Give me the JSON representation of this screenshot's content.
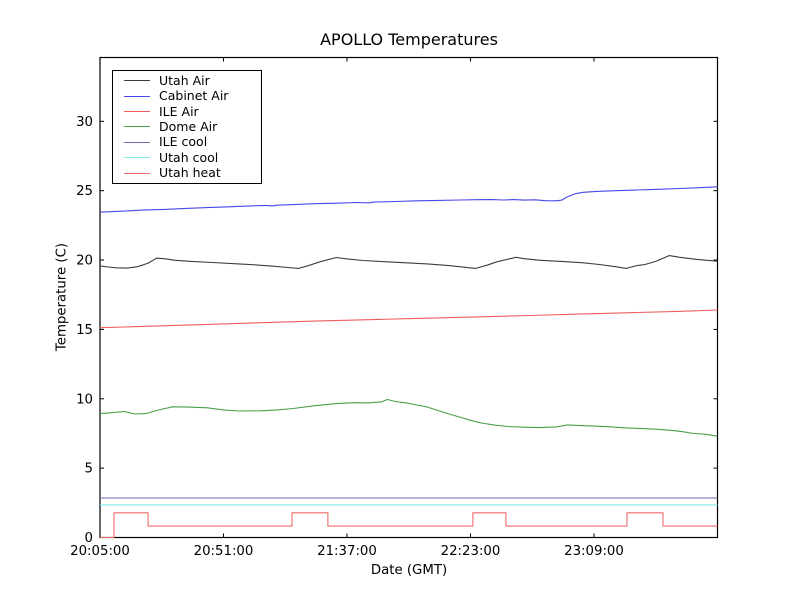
{
  "title": "APOLLO Temperatures",
  "chart_data": {
    "type": "line",
    "title": "APOLLO Temperatures",
    "xlabel": "Date (GMT)",
    "ylabel": "Temperature (C)",
    "x_unit": "minutes after 20:05:00 GMT",
    "xlim": [
      0,
      230
    ],
    "ylim": [
      0,
      34.6
    ],
    "y_ticks": [
      0,
      5,
      10,
      15,
      20,
      25,
      30
    ],
    "x_ticks": [
      {
        "minutes": 0,
        "label": "20:05:00"
      },
      {
        "minutes": 46,
        "label": "20:51:00"
      },
      {
        "minutes": 92,
        "label": "21:37:00"
      },
      {
        "minutes": 138,
        "label": "22:23:00"
      },
      {
        "minutes": 184,
        "label": "23:09:00"
      }
    ],
    "grid": false,
    "legend_position": "upper left",
    "frame_color": "#000000",
    "series": [
      {
        "name": "Utah Air",
        "color": "#3d3d3d",
        "points": [
          [
            0,
            19.58
          ],
          [
            3,
            19.5
          ],
          [
            6,
            19.44
          ],
          [
            10,
            19.42
          ],
          [
            14,
            19.52
          ],
          [
            18,
            19.78
          ],
          [
            21,
            20.13
          ],
          [
            24,
            20.1
          ],
          [
            28,
            19.98
          ],
          [
            34,
            19.9
          ],
          [
            42,
            19.82
          ],
          [
            50,
            19.74
          ],
          [
            58,
            19.65
          ],
          [
            64,
            19.56
          ],
          [
            70,
            19.46
          ],
          [
            74,
            19.4
          ],
          [
            78,
            19.62
          ],
          [
            82,
            19.88
          ],
          [
            88,
            20.18
          ],
          [
            92,
            20.08
          ],
          [
            98,
            19.97
          ],
          [
            106,
            19.88
          ],
          [
            114,
            19.8
          ],
          [
            122,
            19.72
          ],
          [
            130,
            19.6
          ],
          [
            136,
            19.48
          ],
          [
            140,
            19.4
          ],
          [
            144,
            19.62
          ],
          [
            148,
            19.88
          ],
          [
            155,
            20.2
          ],
          [
            158,
            20.1
          ],
          [
            164,
            19.98
          ],
          [
            172,
            19.9
          ],
          [
            180,
            19.8
          ],
          [
            186,
            19.68
          ],
          [
            192,
            19.52
          ],
          [
            196,
            19.4
          ],
          [
            200,
            19.6
          ],
          [
            203,
            19.68
          ],
          [
            207,
            19.9
          ],
          [
            212,
            20.32
          ],
          [
            216,
            20.2
          ],
          [
            222,
            20.05
          ],
          [
            226,
            19.98
          ],
          [
            230,
            19.92
          ]
        ]
      },
      {
        "name": "Cabinet Air",
        "color": "#4747e8",
        "points": [
          [
            0,
            23.45
          ],
          [
            8,
            23.52
          ],
          [
            16,
            23.6
          ],
          [
            24,
            23.65
          ],
          [
            32,
            23.72
          ],
          [
            40,
            23.78
          ],
          [
            48,
            23.84
          ],
          [
            56,
            23.9
          ],
          [
            62,
            23.94
          ],
          [
            64,
            23.9
          ],
          [
            66,
            23.95
          ],
          [
            72,
            24.0
          ],
          [
            80,
            24.06
          ],
          [
            88,
            24.1
          ],
          [
            96,
            24.15
          ],
          [
            100,
            24.12
          ],
          [
            102,
            24.18
          ],
          [
            110,
            24.22
          ],
          [
            118,
            24.27
          ],
          [
            126,
            24.3
          ],
          [
            134,
            24.33
          ],
          [
            140,
            24.35
          ],
          [
            146,
            24.36
          ],
          [
            150,
            24.33
          ],
          [
            154,
            24.36
          ],
          [
            158,
            24.32
          ],
          [
            162,
            24.34
          ],
          [
            166,
            24.28
          ],
          [
            170,
            24.27
          ],
          [
            172,
            24.32
          ],
          [
            174,
            24.55
          ],
          [
            177,
            24.78
          ],
          [
            180,
            24.88
          ],
          [
            185,
            24.95
          ],
          [
            192,
            25.0
          ],
          [
            200,
            25.05
          ],
          [
            208,
            25.1
          ],
          [
            216,
            25.16
          ],
          [
            224,
            25.22
          ],
          [
            230,
            25.28
          ]
        ]
      },
      {
        "name": "ILE Air",
        "color": "#ef5c5c",
        "points": [
          [
            0,
            15.12
          ],
          [
            20,
            15.24
          ],
          [
            40,
            15.36
          ],
          [
            60,
            15.48
          ],
          [
            80,
            15.6
          ],
          [
            100,
            15.7
          ],
          [
            120,
            15.8
          ],
          [
            140,
            15.9
          ],
          [
            160,
            16.0
          ],
          [
            180,
            16.12
          ],
          [
            200,
            16.22
          ],
          [
            215,
            16.3
          ],
          [
            230,
            16.4
          ]
        ]
      },
      {
        "name": "Dome Air",
        "color": "#48a048",
        "points": [
          [
            0,
            8.93
          ],
          [
            5,
            9.0
          ],
          [
            9,
            9.08
          ],
          [
            13,
            8.9
          ],
          [
            17,
            8.93
          ],
          [
            22,
            9.2
          ],
          [
            27,
            9.42
          ],
          [
            33,
            9.4
          ],
          [
            40,
            9.35
          ],
          [
            46,
            9.2
          ],
          [
            52,
            9.12
          ],
          [
            60,
            9.13
          ],
          [
            66,
            9.2
          ],
          [
            72,
            9.3
          ],
          [
            80,
            9.5
          ],
          [
            88,
            9.65
          ],
          [
            95,
            9.72
          ],
          [
            100,
            9.7
          ],
          [
            105,
            9.78
          ],
          [
            107,
            9.95
          ],
          [
            110,
            9.8
          ],
          [
            114,
            9.7
          ],
          [
            118,
            9.55
          ],
          [
            122,
            9.4
          ],
          [
            126,
            9.15
          ],
          [
            130,
            8.9
          ],
          [
            134,
            8.68
          ],
          [
            138,
            8.45
          ],
          [
            142,
            8.25
          ],
          [
            147,
            8.1
          ],
          [
            152,
            8.0
          ],
          [
            158,
            7.95
          ],
          [
            164,
            7.92
          ],
          [
            170,
            7.97
          ],
          [
            174,
            8.12
          ],
          [
            178,
            8.08
          ],
          [
            184,
            8.03
          ],
          [
            190,
            7.98
          ],
          [
            196,
            7.9
          ],
          [
            202,
            7.85
          ],
          [
            208,
            7.8
          ],
          [
            214,
            7.7
          ],
          [
            218,
            7.6
          ],
          [
            221,
            7.5
          ],
          [
            225,
            7.45
          ],
          [
            230,
            7.3
          ]
        ]
      },
      {
        "name": "ILE cool",
        "color": "#6b6bac",
        "points": [
          [
            0,
            2.85
          ],
          [
            230,
            2.85
          ]
        ]
      },
      {
        "name": "Utah cool",
        "color": "#82e9e9",
        "points": [
          [
            0,
            2.35
          ],
          [
            230,
            2.35
          ]
        ]
      },
      {
        "name": "Utah heat",
        "color": "#ef6a6a",
        "points": [
          [
            0,
            0.0
          ],
          [
            5.2,
            0.0
          ],
          [
            5.2,
            1.78
          ],
          [
            17.9,
            1.78
          ],
          [
            17.9,
            0.82
          ],
          [
            71.5,
            0.82
          ],
          [
            71.5,
            1.78
          ],
          [
            84.9,
            1.78
          ],
          [
            84.9,
            0.82
          ],
          [
            138.9,
            0.82
          ],
          [
            138.9,
            1.78
          ],
          [
            151.2,
            1.78
          ],
          [
            151.2,
            0.82
          ],
          [
            196.3,
            0.82
          ],
          [
            196.3,
            1.78
          ],
          [
            209.7,
            1.78
          ],
          [
            209.7,
            0.82
          ],
          [
            230,
            0.82
          ]
        ]
      }
    ]
  }
}
